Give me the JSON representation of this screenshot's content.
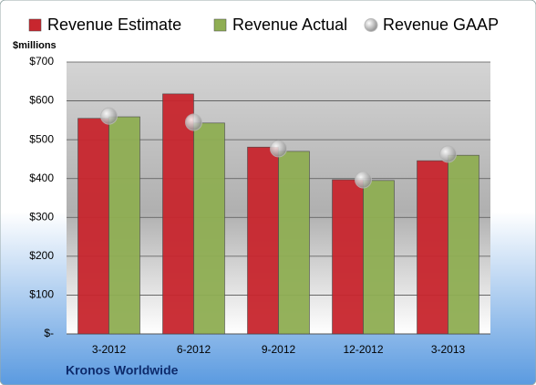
{
  "chart_data": {
    "type": "bar",
    "title": "Kronos Worldwide",
    "y_label": "$millions",
    "categories": [
      "3-2012",
      "6-2012",
      "9-2012",
      "12-2012",
      "3-2013"
    ],
    "series": [
      {
        "name": "Revenue Estimate",
        "color": "#c8262e",
        "style": "bar",
        "values": [
          555,
          618,
          481,
          397,
          446
        ]
      },
      {
        "name": "Revenue Actual",
        "color": "#8fae53",
        "style": "bar",
        "values": [
          559,
          543,
          470,
          395,
          460
        ]
      },
      {
        "name": "Revenue GAAP",
        "color": "#b8b8b8",
        "style": "marker",
        "values": [
          561,
          545,
          477,
          397,
          463
        ]
      }
    ],
    "ylim": [
      0,
      700
    ],
    "yticks": [
      {
        "value": 0,
        "label": "$-"
      },
      {
        "value": 100,
        "label": "$100"
      },
      {
        "value": 200,
        "label": "$200"
      },
      {
        "value": 300,
        "label": "$300"
      },
      {
        "value": 400,
        "label": "$400"
      },
      {
        "value": 500,
        "label": "$500"
      },
      {
        "value": 600,
        "label": "$600"
      },
      {
        "value": 700,
        "label": "$700"
      }
    ],
    "grid": true,
    "legend": "top"
  }
}
